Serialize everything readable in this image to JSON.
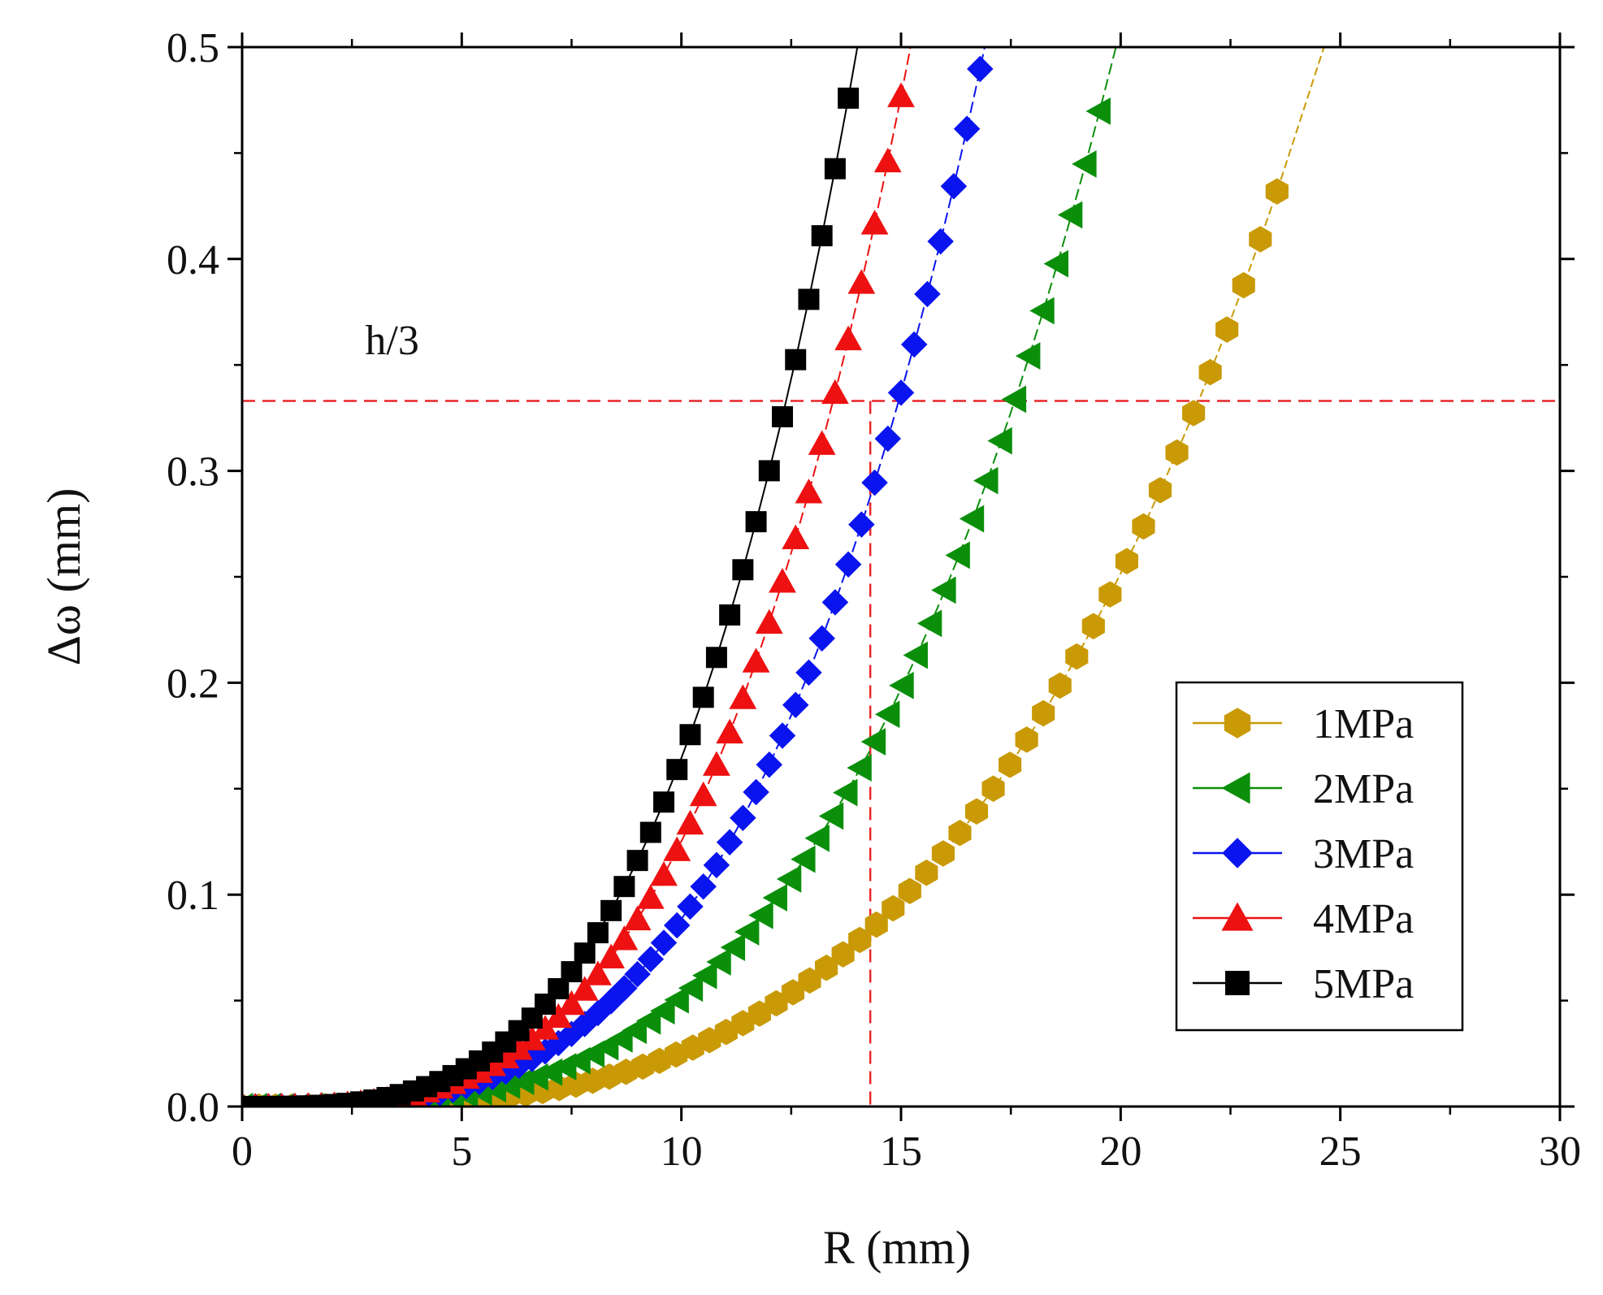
{
  "chart_data": {
    "type": "line",
    "title": "",
    "xlabel": "R (mm)",
    "ylabel": "Δω (mm)",
    "xlim": [
      0,
      30
    ],
    "ylim": [
      0,
      0.5
    ],
    "xticks": [
      "0",
      "5",
      "10",
      "15",
      "20",
      "25",
      "30"
    ],
    "yticks": [
      "0.0",
      "0.1",
      "0.2",
      "0.3",
      "0.4",
      "0.5"
    ],
    "x_tick_values": [
      0,
      5,
      10,
      15,
      20,
      25,
      30
    ],
    "y_tick_values": [
      0,
      0.1,
      0.2,
      0.3,
      0.4,
      0.5
    ],
    "grid": false,
    "legend_position": "bottom-right",
    "annotation": {
      "text": "h/3",
      "x": 2.8,
      "y": 0.355
    },
    "reference_lines": [
      {
        "orientation": "horizontal",
        "value": 0.333,
        "color": "#e8262b",
        "style": "dashed"
      },
      {
        "orientation": "vertical",
        "value": 14.3,
        "color": "#e8262b",
        "style": "dashed"
      }
    ],
    "series": [
      {
        "name": "1MPa",
        "color": "#c99a06",
        "marker": "hexagon",
        "exponent": 3.3,
        "k": 1.28e-05,
        "xmax": 23.6,
        "dx": 0.38
      },
      {
        "name": "2MPa",
        "color": "#0b8f0b",
        "marker": "triangle-left",
        "exponent": 3.3,
        "k": 2.59e-05,
        "xmax": 19.7,
        "dx": 0.32
      },
      {
        "name": "3MPa",
        "color": "#0a14ee",
        "marker": "diamond",
        "exponent": 3.3,
        "k": 4.43e-05,
        "xmax": 17.9,
        "dx": 0.3
      },
      {
        "name": "4MPa",
        "color": "#ee1111",
        "marker": "triangle-up",
        "exponent": 3.3,
        "k": 6.27e-05,
        "xmax": 16.7,
        "dx": 0.3
      },
      {
        "name": "5MPa",
        "color": "#000000",
        "marker": "square",
        "exponent": 3.3,
        "k": 8.24e-05,
        "xmax": 15.8,
        "dx": 0.3
      }
    ]
  }
}
